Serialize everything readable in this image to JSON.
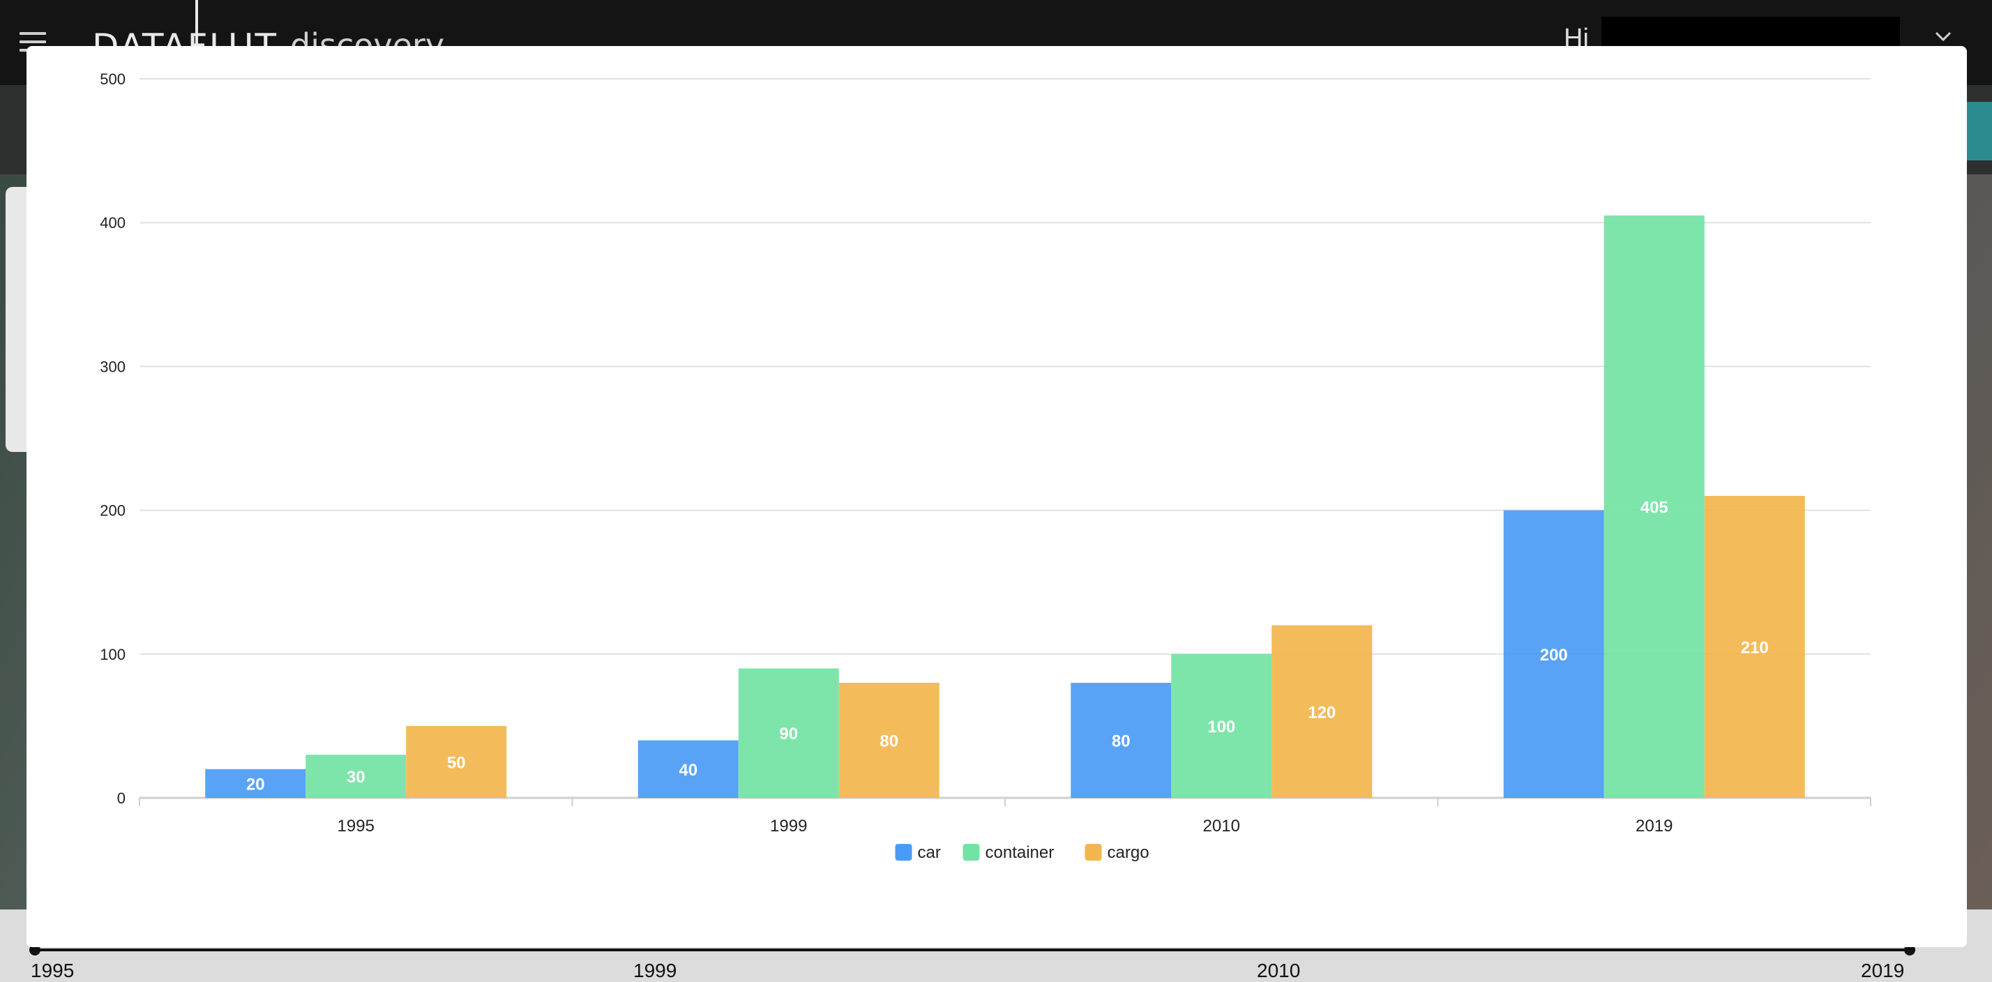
{
  "header": {
    "logo_main": "DATAFLUT",
    "logo_sub": "discovery",
    "greeting": "Hi"
  },
  "timeline": {
    "labels": [
      "1995",
      "1999",
      "2010",
      "2019"
    ]
  },
  "icons": {
    "menu": "hamburger-menu-icon",
    "account_toggle": "chevron-down-icon"
  },
  "chart_data": {
    "type": "bar",
    "title": "",
    "xlabel": "",
    "ylabel": "",
    "categories": [
      "1995",
      "1999",
      "2010",
      "2019"
    ],
    "series": [
      {
        "name": "car",
        "values": [
          20,
          40,
          80,
          200
        ],
        "color": "#4a9bf5"
      },
      {
        "name": "container",
        "values": [
          30,
          90,
          100,
          405
        ],
        "color": "#72e3a3"
      },
      {
        "name": "cargo",
        "values": [
          50,
          80,
          120,
          210
        ],
        "color": "#f3b54d"
      }
    ],
    "ylim": [
      0,
      500
    ],
    "yticks": [
      0,
      100,
      200,
      300,
      400,
      500
    ],
    "grid": true,
    "legend_position": "bottom-center",
    "data_labels": true
  }
}
